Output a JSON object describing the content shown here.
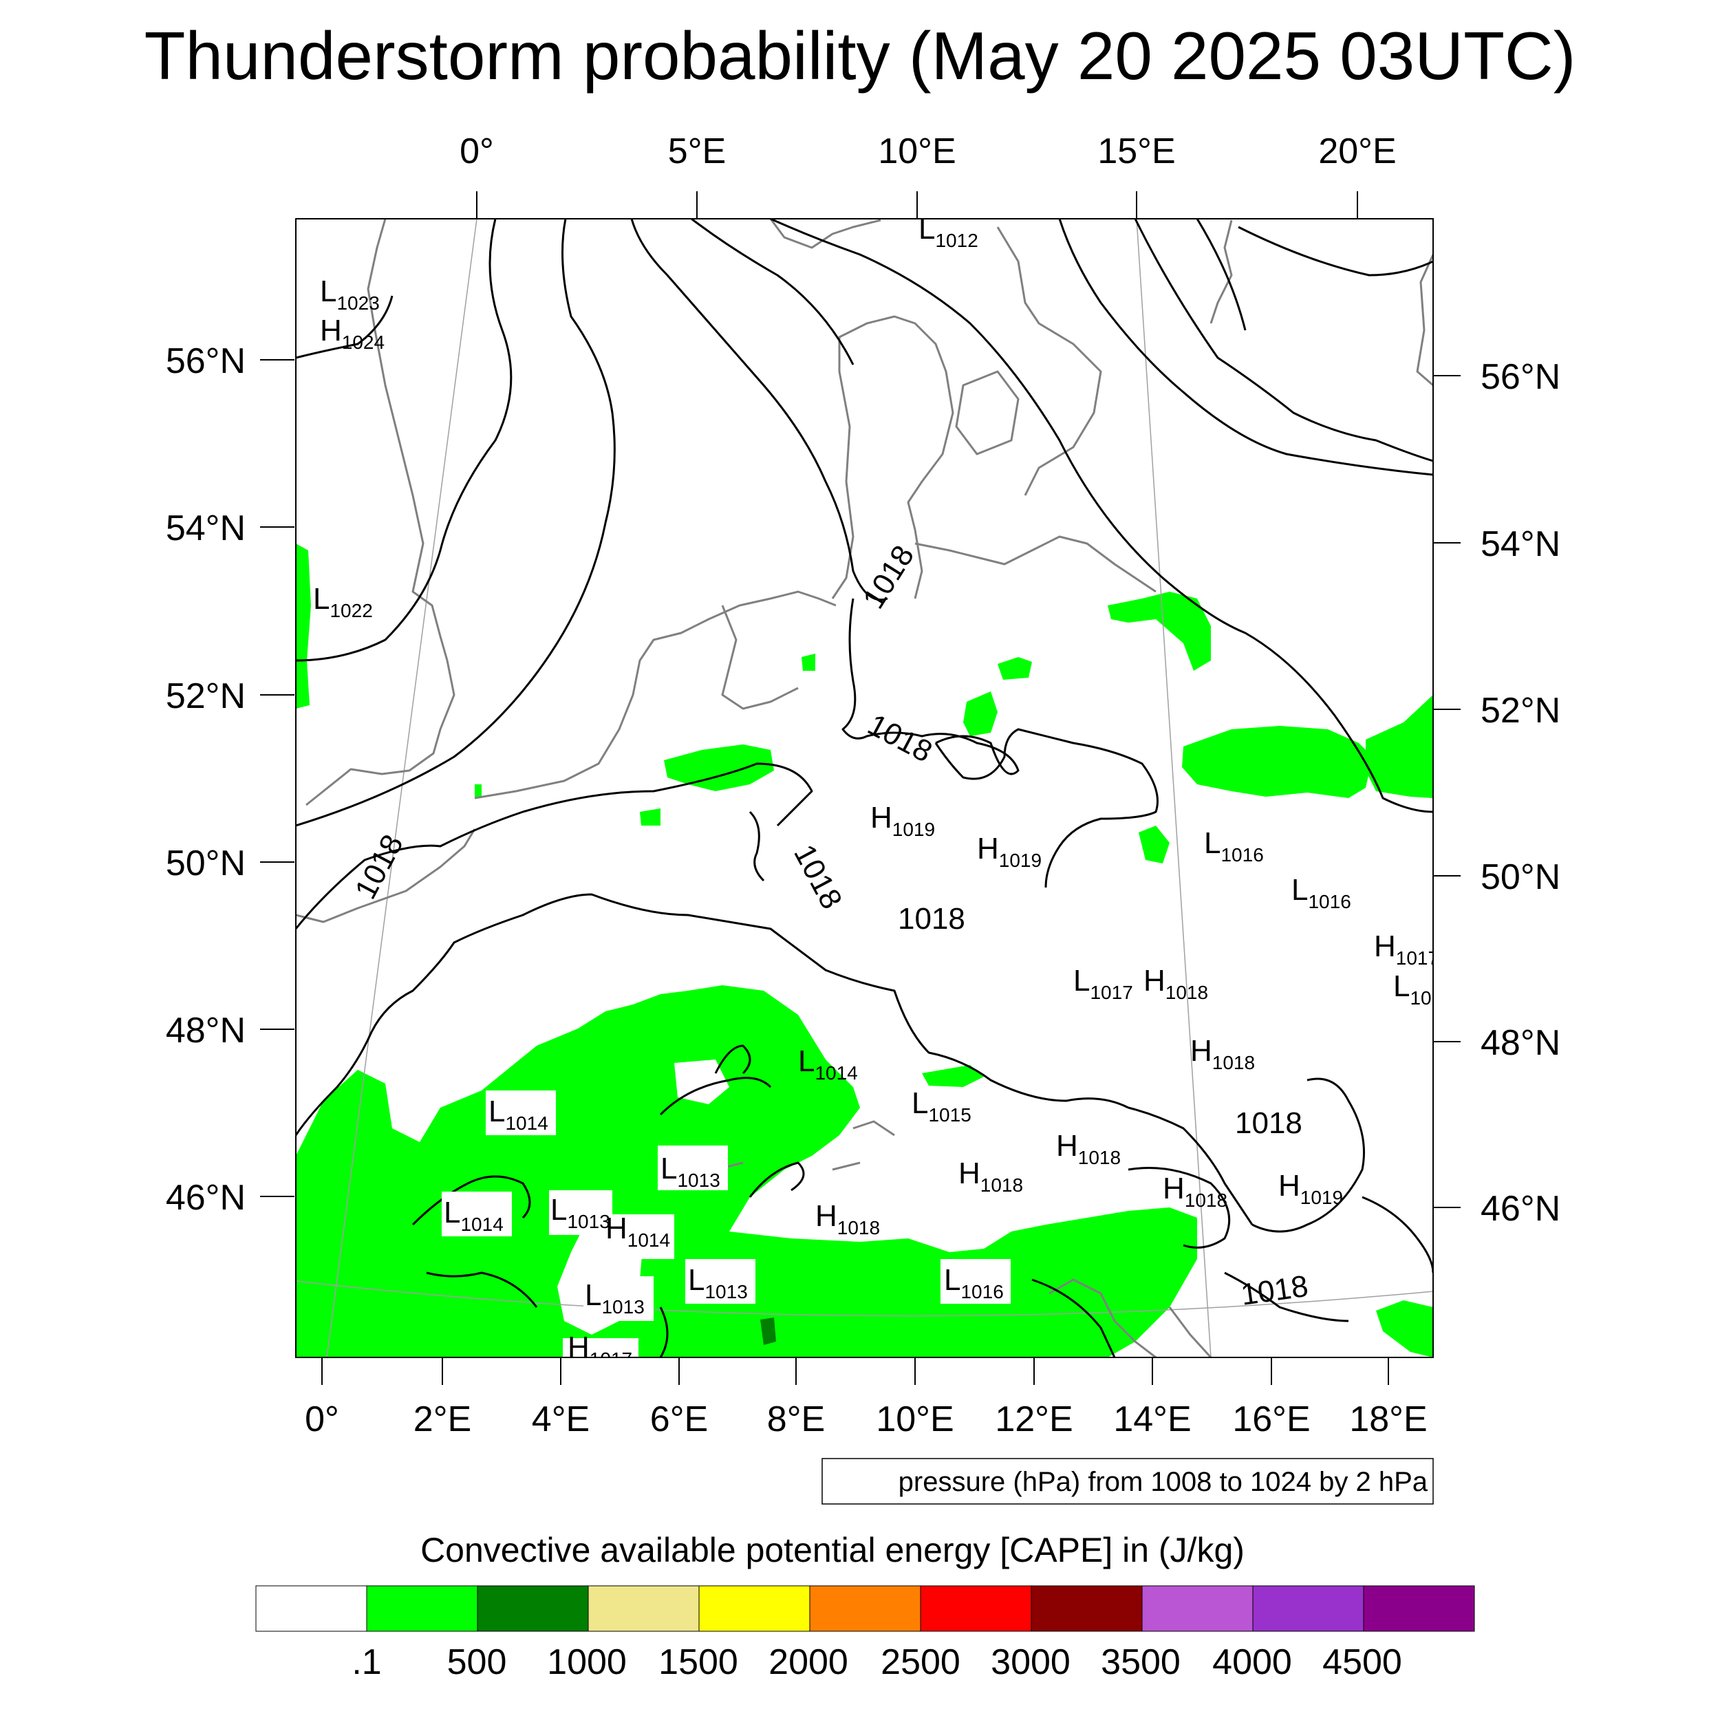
{
  "title": "Thunderstorm probability (May 20 2025 03UTC)",
  "top_lon_ticks": [
    "0°",
    "5°E",
    "10°E",
    "15°E",
    "20°E"
  ],
  "bottom_lon_ticks": [
    "0°",
    "2°E",
    "4°E",
    "6°E",
    "8°E",
    "10°E",
    "12°E",
    "14°E",
    "16°E",
    "18°E"
  ],
  "left_lat_ticks": [
    "56°N",
    "54°N",
    "52°N",
    "50°N",
    "48°N",
    "46°N"
  ],
  "right_lat_ticks": [
    "56°N",
    "54°N",
    "52°N",
    "50°N",
    "48°N",
    "46°N"
  ],
  "pressure_note": "pressure (hPa) from 1008 to 1024 by 2 hPa",
  "colorbar": {
    "title": "Convective available potential energy [CAPE] in (J/kg)",
    "labels": [
      ".1",
      "500",
      "1000",
      "1500",
      "2000",
      "2500",
      "3000",
      "3500",
      "4000",
      "4500"
    ],
    "colors": [
      "#ffffff",
      "#00ff00",
      "#007f00",
      "#f0e68c",
      "#ffff00",
      "#ff8000",
      "#ff0000",
      "#8b0000",
      "#ba55d3",
      "#9932cc",
      "#8b008b"
    ]
  },
  "contour_labels": [
    "1018",
    "1018",
    "1018",
    "1018",
    "1018",
    "1018",
    "1018"
  ],
  "pressure_systems": [
    {
      "type": "L",
      "value": "1012"
    },
    {
      "type": "L",
      "value": "1023"
    },
    {
      "type": "H",
      "value": "1024"
    },
    {
      "type": "L",
      "value": "1022"
    },
    {
      "type": "H",
      "value": "1019"
    },
    {
      "type": "H",
      "value": "1019"
    },
    {
      "type": "L",
      "value": "1016"
    },
    {
      "type": "L",
      "value": "1016"
    },
    {
      "type": "H",
      "value": "1017"
    },
    {
      "type": "L",
      "value": "10"
    },
    {
      "type": "L",
      "value": "1017"
    },
    {
      "type": "H",
      "value": "1018"
    },
    {
      "type": "H",
      "value": "1018"
    },
    {
      "type": "L",
      "value": "1014"
    },
    {
      "type": "L",
      "value": "1015"
    },
    {
      "type": "H",
      "value": "1018"
    },
    {
      "type": "L",
      "value": "1014"
    },
    {
      "type": "H",
      "value": "1018"
    },
    {
      "type": "H",
      "value": "1018"
    },
    {
      "type": "H",
      "value": "1019"
    },
    {
      "type": "L",
      "value": "1013"
    },
    {
      "type": "L",
      "value": "1014"
    },
    {
      "type": "L",
      "value": "1013"
    },
    {
      "type": "H",
      "value": "1014"
    },
    {
      "type": "H",
      "value": "1018"
    },
    {
      "type": "L",
      "value": "1013"
    },
    {
      "type": "L",
      "value": "1013"
    },
    {
      "type": "L",
      "value": "1016"
    },
    {
      "type": "H",
      "value": "1017"
    }
  ]
}
